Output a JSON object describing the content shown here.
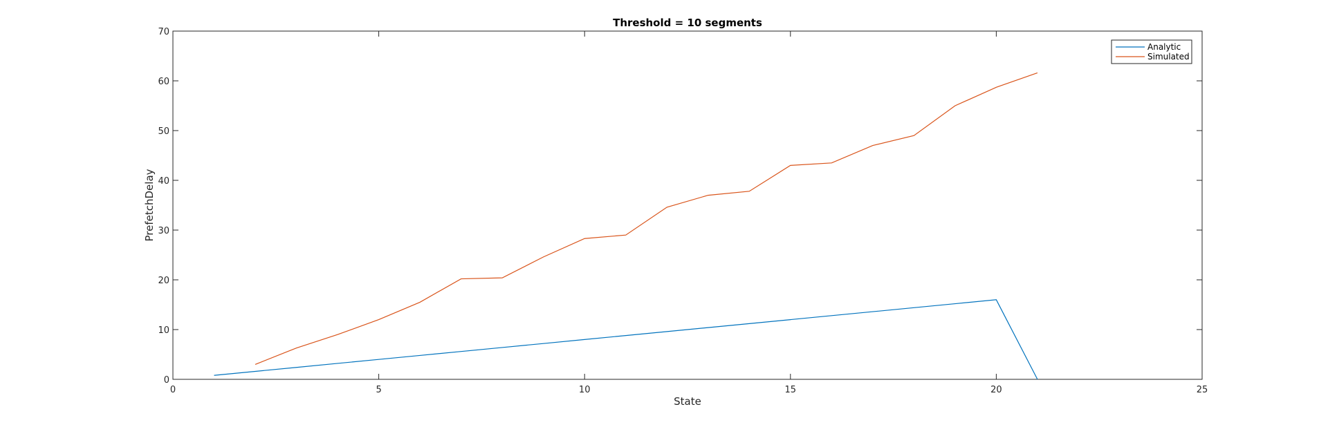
{
  "chart_data": {
    "type": "line",
    "title": "Threshold = 10  segments",
    "xlabel": "State",
    "ylabel": "PrefetchDelay",
    "xlim": [
      0,
      25
    ],
    "ylim": [
      0,
      70
    ],
    "xticks": [
      0,
      5,
      10,
      15,
      20,
      25
    ],
    "yticks": [
      0,
      10,
      20,
      30,
      40,
      50,
      60,
      70
    ],
    "grid": false,
    "legend_position": "top-right",
    "series": [
      {
        "name": "Analytic",
        "color": "#0072BD",
        "x": [
          1,
          2,
          3,
          4,
          5,
          6,
          7,
          8,
          9,
          10,
          11,
          12,
          13,
          14,
          15,
          16,
          17,
          18,
          19,
          20,
          21
        ],
        "y": [
          0.8,
          1.6,
          2.4,
          3.2,
          4.0,
          4.8,
          5.6,
          6.4,
          7.2,
          8.0,
          8.8,
          9.6,
          10.4,
          11.2,
          12.0,
          12.8,
          13.6,
          14.4,
          15.2,
          16.0,
          0
        ]
      },
      {
        "name": "Simulated",
        "color": "#D95319",
        "x": [
          2,
          3,
          4,
          5,
          6,
          7,
          8,
          9,
          10,
          11,
          12,
          13,
          14,
          15,
          16,
          17,
          18,
          19,
          20,
          21
        ],
        "y": [
          3.0,
          6.3,
          9.0,
          12.0,
          15.5,
          20.2,
          20.4,
          24.6,
          28.3,
          29.0,
          34.6,
          37.0,
          37.8,
          43.0,
          43.5,
          47.0,
          49.0,
          55.0,
          58.7,
          61.6
        ]
      }
    ]
  }
}
